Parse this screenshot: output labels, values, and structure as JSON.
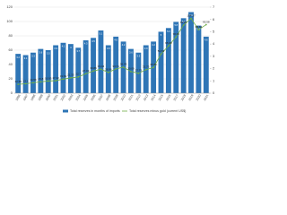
{
  "chart_data": {
    "type": "bar",
    "categories": [
      "1996",
      "1997",
      "1998",
      "1999",
      "2000",
      "2001",
      "2002",
      "2003",
      "2004",
      "2005",
      "2006",
      "2007",
      "2008",
      "2009",
      "2010",
      "2011",
      "2012",
      "2013",
      "2014",
      "2015",
      "2016",
      "2017",
      "2018",
      "2019",
      "2020",
      "2021"
    ],
    "series": [
      {
        "name": "Total reserves in months of imports",
        "color": "#2e75b6",
        "axis": "y2",
        "values": [
          3.2,
          3.1,
          3.3,
          3.6,
          3.5,
          3.9,
          4.1,
          4.0,
          3.7,
          4.3,
          4.5,
          5.1,
          3.9,
          4.6,
          4.2,
          3.6,
          3.3,
          3.9,
          4.2,
          5.0,
          5.3,
          5.8,
          6.1,
          6.6,
          5.5,
          4.6
        ]
      },
      {
        "name": "Total reserves minus gold (current US$)",
        "color": "#70ad47",
        "type": "line",
        "values": [
          12.35,
          13.1,
          14.56,
          15.8,
          16.93,
          17.42,
          19.61,
          21.33,
          22.7,
          27.03,
          30.86,
          33.44,
          28.96,
          33.71,
          36.43,
          30.09,
          27.73,
          32.73,
          35.85,
          54.53,
          65.98,
          78.35,
          94.87,
          104.17,
          88.64,
          95.58
        ]
      }
    ],
    "ylim": [
      0,
      120
    ],
    "yticks": [
      0,
      20,
      40,
      60,
      80,
      100,
      120
    ],
    "y2lim": [
      0,
      7
    ],
    "y2ticks": [
      0,
      1,
      2,
      3,
      4,
      5,
      6,
      7
    ],
    "grid": true
  }
}
